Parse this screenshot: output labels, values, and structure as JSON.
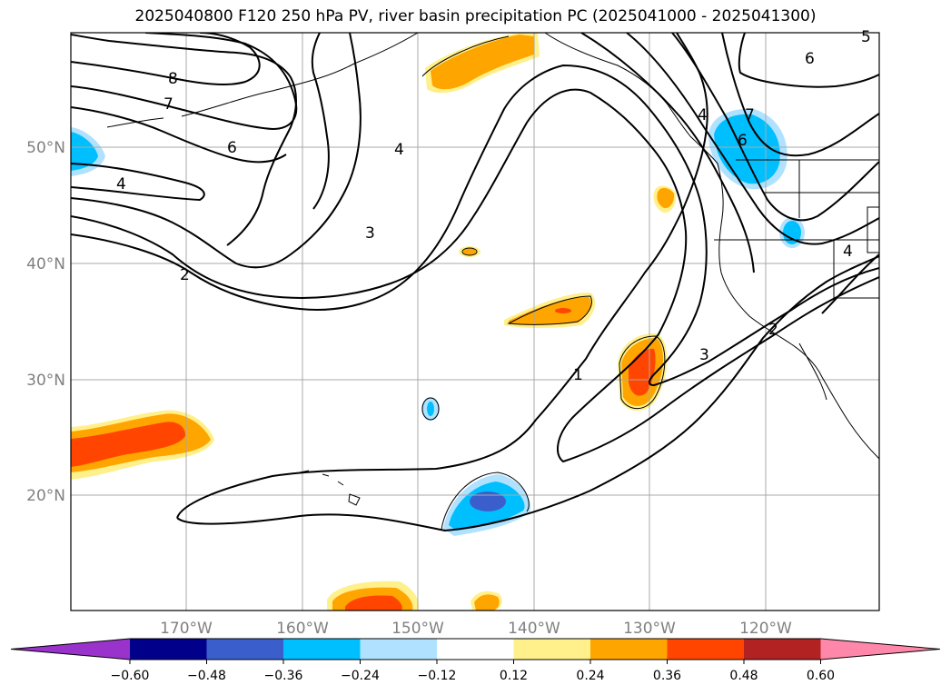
{
  "title": "2025040800 F120 250 hPa PV, river basin precipitation PC (2025041000 - 2025041300)",
  "lat_labels": [
    "50°N",
    "40°N",
    "30°N",
    "20°N"
  ],
  "lon_labels": [
    "170°W",
    "160°W",
    "150°W",
    "140°W",
    "130°W",
    "120°W"
  ],
  "colorbar": {
    "colors": [
      "#9933cc",
      "#00008b",
      "#3a5fcd",
      "#00bfff",
      "#b0e2ff",
      "#ffffff",
      "#fff08c",
      "#ffa500",
      "#ff4500",
      "#b22222",
      "#ff88aa"
    ],
    "ticks": [
      "−0.60",
      "−0.48",
      "−0.36",
      "−0.24",
      "−0.12",
      "0.12",
      "0.24",
      "0.36",
      "0.48",
      "0.60"
    ]
  },
  "contour_labels": [
    "8",
    "7",
    "6",
    "4",
    "2",
    "3",
    "4",
    "1",
    "3",
    "2",
    "4",
    "6",
    "6",
    "4",
    "7",
    "5"
  ]
}
